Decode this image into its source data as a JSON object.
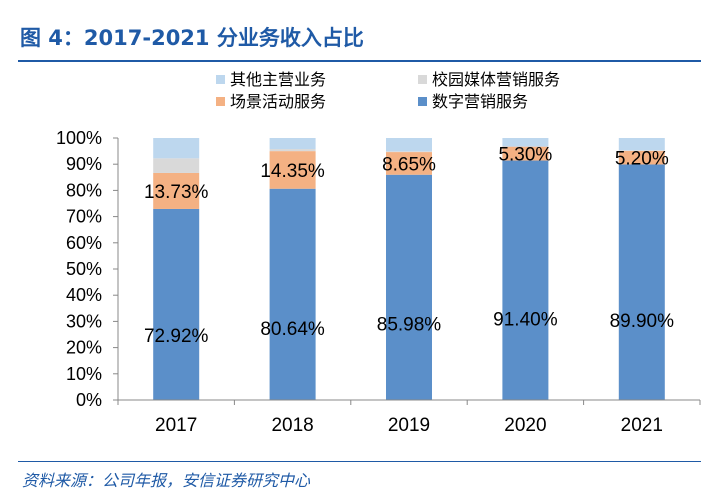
{
  "figure": {
    "title": "图 4：2017-2021 分业务收入占比",
    "source": "资料来源：公司年报，安信证券研究中心"
  },
  "chart_data": {
    "type": "bar",
    "stacked": true,
    "categories": [
      "2017",
      "2018",
      "2019",
      "2020",
      "2021"
    ],
    "ylim": [
      0,
      100
    ],
    "yticks": [
      "0%",
      "10%",
      "20%",
      "30%",
      "40%",
      "50%",
      "60%",
      "70%",
      "80%",
      "90%",
      "100%"
    ],
    "series": [
      {
        "name": "数字营销服务",
        "color": "#5b8fc9",
        "values": [
          72.92,
          80.64,
          85.98,
          91.4,
          89.9
        ],
        "labels": [
          "72.92%",
          "80.64%",
          "85.98%",
          "91.40%",
          "89.90%"
        ]
      },
      {
        "name": "场景活动服务",
        "color": "#f4b183",
        "values": [
          13.73,
          14.35,
          8.65,
          5.3,
          5.2
        ],
        "labels": [
          "13.73%",
          "14.35%",
          "8.65%",
          "5.30%",
          "5.20%"
        ]
      },
      {
        "name": "校园媒体营销服务",
        "color": "#d9d9d9",
        "values": [
          5.6,
          0.8,
          0.3,
          0.0,
          0.2
        ]
      },
      {
        "name": "其他主营业务",
        "color": "#bdd7ee",
        "values": [
          7.75,
          4.21,
          5.07,
          3.3,
          4.7
        ]
      }
    ],
    "legend_placement": "top",
    "grid": false
  }
}
